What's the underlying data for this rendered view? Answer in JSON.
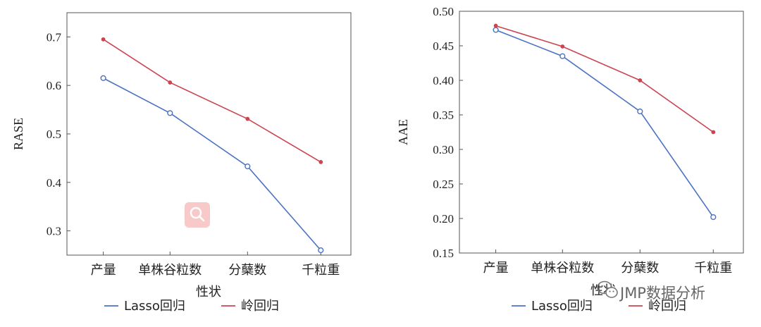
{
  "chart_data": [
    {
      "type": "line",
      "categories": [
        "产量",
        "单株谷粒数",
        "分蘖数",
        "千粒重"
      ],
      "xlabel": "性状",
      "ylabel": "RASE",
      "ylim": [
        0.25,
        0.75
      ],
      "yticks": [
        "0.3",
        "0.4",
        "0.5",
        "0.6",
        "0.7"
      ],
      "grid": false,
      "legend_position": "bottom",
      "series": [
        {
          "name": "Lasso回归",
          "color": "#4a72c4",
          "marker": "open-circle",
          "values": [
            0.615,
            0.543,
            0.433,
            0.26
          ]
        },
        {
          "name": "岭回归",
          "color": "#cc4450",
          "marker": "dot",
          "values": [
            0.695,
            0.606,
            0.531,
            0.442
          ]
        }
      ]
    },
    {
      "type": "line",
      "categories": [
        "产量",
        "单株谷粒数",
        "分蘖数",
        "千粒重"
      ],
      "xlabel": "性状",
      "ylabel": "AAE",
      "ylim": [
        0.15,
        0.5
      ],
      "yticks": [
        "0.15",
        "0.20",
        "0.25",
        "0.30",
        "0.35",
        "0.40",
        "0.45",
        "0.50"
      ],
      "grid": false,
      "legend_position": "bottom",
      "series": [
        {
          "name": "Lasso回归",
          "color": "#4a72c4",
          "marker": "open-circle",
          "values": [
            0.473,
            0.435,
            0.355,
            0.202
          ]
        },
        {
          "name": "岭回归",
          "color": "#cc4450",
          "marker": "dot",
          "values": [
            0.479,
            0.449,
            0.4,
            0.325
          ]
        }
      ]
    }
  ],
  "watermark": {
    "icon": "wechat-icon",
    "text": "JMP数据分析",
    "color": "#666666"
  },
  "search_badge": {
    "icon": "search-icon",
    "color": "#f7c9c9"
  }
}
